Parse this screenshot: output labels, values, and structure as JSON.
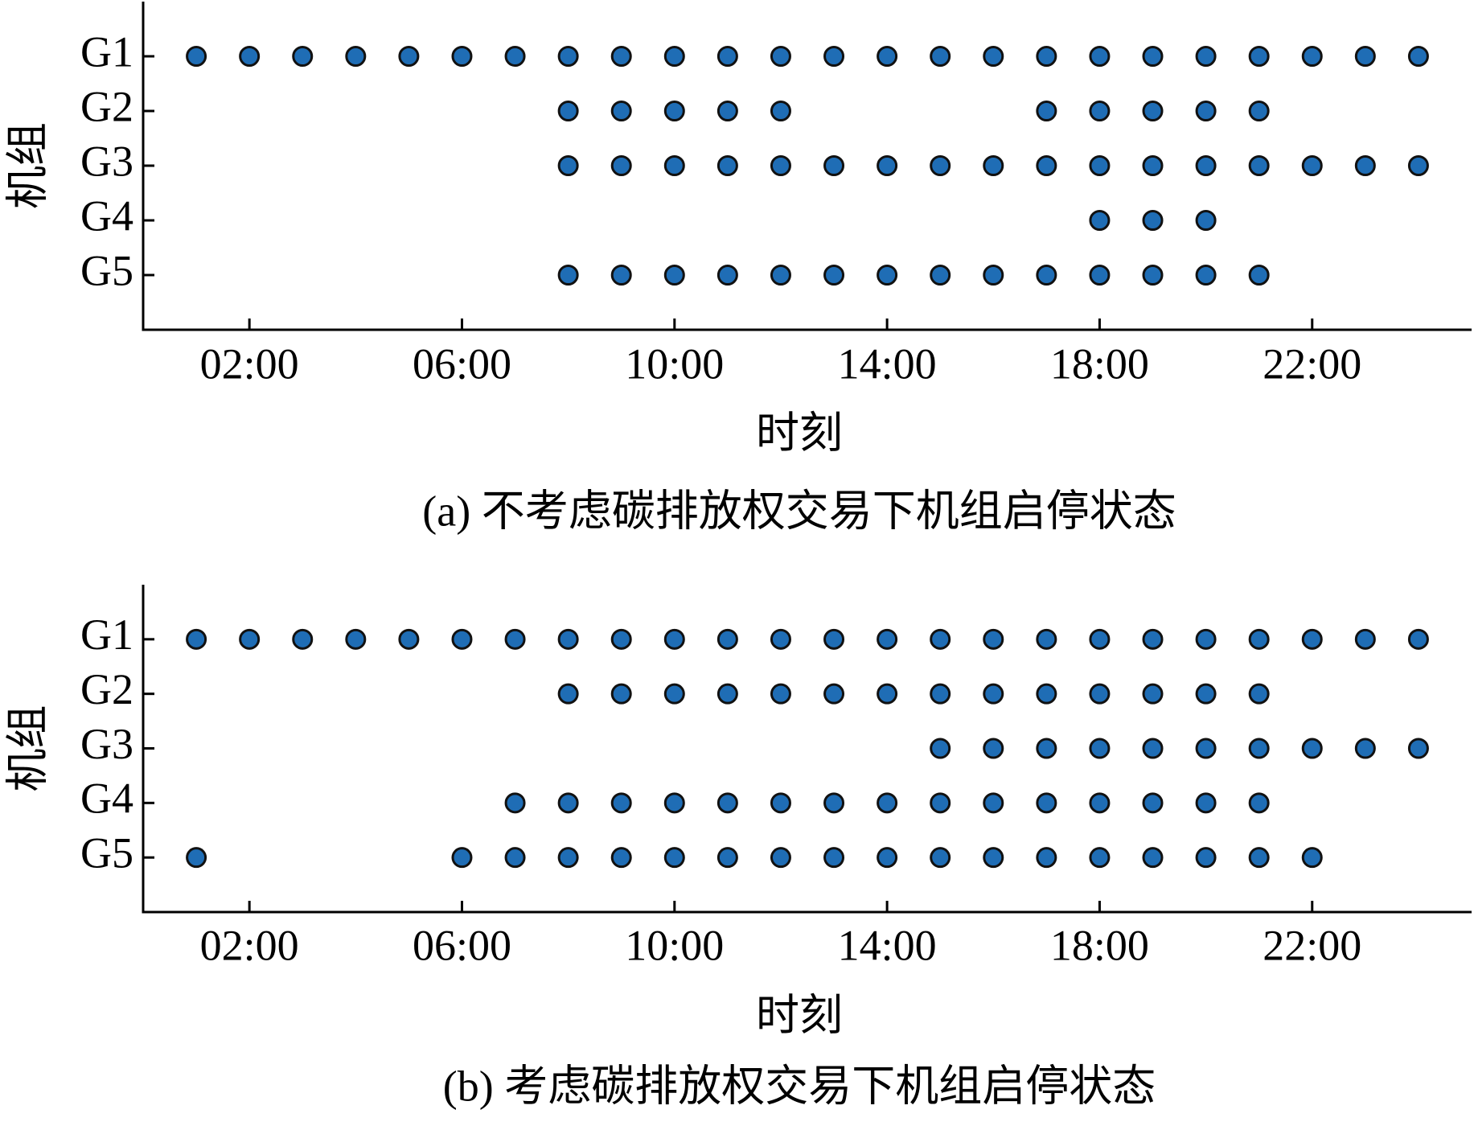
{
  "chart_data": [
    {
      "type": "scatter",
      "caption": "(a) 不考虑碳排放权交易下机组启停状态",
      "xlabel": "时刻",
      "ylabel": "机组",
      "categories": [
        "G1",
        "G2",
        "G3",
        "G4",
        "G5"
      ],
      "xlim": [
        0,
        25
      ],
      "xticks": [
        {
          "value": 2,
          "label": "02:00"
        },
        {
          "value": 6,
          "label": "06:00"
        },
        {
          "value": 10,
          "label": "10:00"
        },
        {
          "value": 14,
          "label": "14:00"
        },
        {
          "value": 18,
          "label": "18:00"
        },
        {
          "value": 22,
          "label": "22:00"
        }
      ],
      "color": "#1f6db5",
      "series": [
        {
          "name": "G1",
          "x": [
            1,
            2,
            3,
            4,
            5,
            6,
            7,
            8,
            9,
            10,
            11,
            12,
            13,
            14,
            15,
            16,
            17,
            18,
            19,
            20,
            21,
            22,
            23,
            24
          ]
        },
        {
          "name": "G2",
          "x": [
            8,
            9,
            10,
            11,
            12,
            17,
            18,
            19,
            20,
            21
          ]
        },
        {
          "name": "G3",
          "x": [
            8,
            9,
            10,
            11,
            12,
            13,
            14,
            15,
            16,
            17,
            18,
            19,
            20,
            21,
            22,
            23,
            24
          ]
        },
        {
          "name": "G4",
          "x": [
            18,
            19,
            20
          ]
        },
        {
          "name": "G5",
          "x": [
            8,
            9,
            10,
            11,
            12,
            13,
            14,
            15,
            16,
            17,
            18,
            19,
            20,
            21
          ]
        }
      ]
    },
    {
      "type": "scatter",
      "caption": "(b) 考虑碳排放权交易下机组启停状态",
      "xlabel": "时刻",
      "ylabel": "机组",
      "categories": [
        "G1",
        "G2",
        "G3",
        "G4",
        "G5"
      ],
      "xlim": [
        0,
        25
      ],
      "xticks": [
        {
          "value": 2,
          "label": "02:00"
        },
        {
          "value": 6,
          "label": "06:00"
        },
        {
          "value": 10,
          "label": "10:00"
        },
        {
          "value": 14,
          "label": "14:00"
        },
        {
          "value": 18,
          "label": "18:00"
        },
        {
          "value": 22,
          "label": "22:00"
        }
      ],
      "color": "#1f6db5",
      "series": [
        {
          "name": "G1",
          "x": [
            1,
            2,
            3,
            4,
            5,
            6,
            7,
            8,
            9,
            10,
            11,
            12,
            13,
            14,
            15,
            16,
            17,
            18,
            19,
            20,
            21,
            22,
            23,
            24
          ]
        },
        {
          "name": "G2",
          "x": [
            8,
            9,
            10,
            11,
            12,
            13,
            14,
            15,
            16,
            17,
            18,
            19,
            20,
            21
          ]
        },
        {
          "name": "G3",
          "x": [
            15,
            16,
            17,
            18,
            19,
            20,
            21,
            22,
            23,
            24
          ]
        },
        {
          "name": "G4",
          "x": [
            7,
            8,
            9,
            10,
            11,
            12,
            13,
            14,
            15,
            16,
            17,
            18,
            19,
            20,
            21
          ]
        },
        {
          "name": "G5",
          "x": [
            1,
            6,
            7,
            8,
            9,
            10,
            11,
            12,
            13,
            14,
            15,
            16,
            17,
            18,
            19,
            20,
            21,
            22
          ]
        }
      ]
    }
  ]
}
